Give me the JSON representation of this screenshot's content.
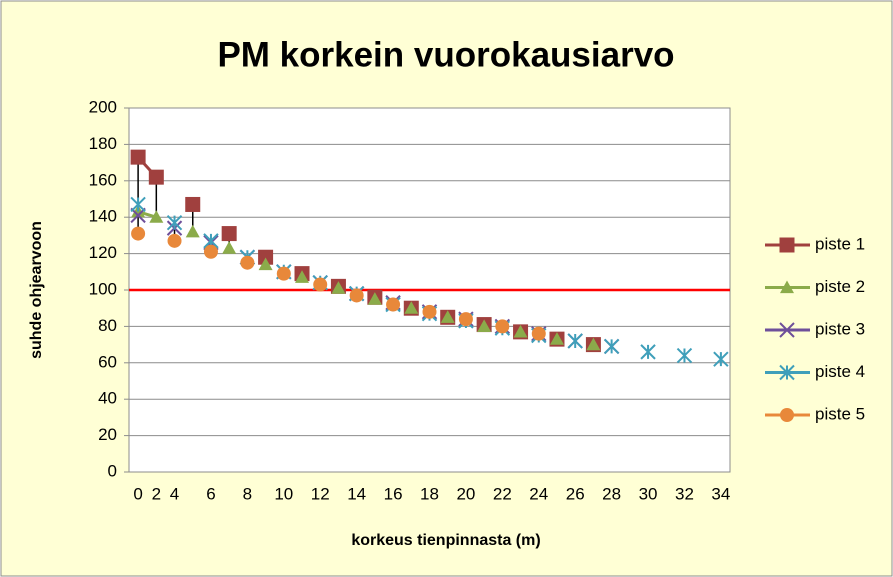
{
  "chart_data": {
    "type": "line",
    "title": "PM korkein vuorokausiarvo",
    "x_label": "korkeus tienpinnasta (m)",
    "y_label": "suhde ohjearvoon",
    "categories": [
      "0",
      "2",
      "4",
      null,
      "6",
      null,
      "8",
      null,
      "10",
      null,
      "12",
      null,
      "14",
      null,
      "16",
      null,
      "18",
      null,
      "20",
      null,
      "22",
      null,
      "24",
      null,
      "26",
      null,
      "28",
      null,
      "30",
      null,
      "32",
      null,
      "34"
    ],
    "ylim": [
      0,
      200
    ],
    "yticks": [
      0,
      20,
      40,
      60,
      80,
      100,
      120,
      140,
      160,
      180,
      200
    ],
    "grid": true,
    "legend": "right",
    "hilo_lines": true,
    "reference_line": {
      "value": 100,
      "color": "#ff0000"
    },
    "series": [
      {
        "name": "piste 1",
        "color": "#a0403e",
        "marker": "square",
        "values": [
          173,
          162,
          null,
          147,
          null,
          131,
          null,
          118,
          null,
          109,
          null,
          102,
          null,
          96,
          null,
          90,
          null,
          85,
          null,
          81,
          null,
          77,
          null,
          73,
          null,
          70,
          null,
          null,
          null,
          null,
          null,
          null,
          null
        ]
      },
      {
        "name": "piste 2",
        "color": "#8bab4a",
        "marker": "triangle",
        "values": [
          143,
          140,
          null,
          132,
          null,
          123,
          null,
          114,
          null,
          107,
          null,
          101,
          null,
          95,
          null,
          90,
          null,
          85,
          null,
          80,
          null,
          77,
          null,
          73,
          null,
          70,
          null,
          null,
          null,
          null,
          null,
          null,
          null
        ]
      },
      {
        "name": "piste 3",
        "color": "#6e4f9a",
        "marker": "x",
        "values": [
          141,
          null,
          134,
          null,
          126,
          null,
          118,
          null,
          110,
          null,
          104,
          null,
          98,
          null,
          93,
          null,
          88,
          null,
          84,
          null,
          80,
          null,
          76,
          null,
          72,
          null,
          69,
          null,
          null,
          null,
          null,
          null,
          null
        ]
      },
      {
        "name": "piste 4",
        "color": "#3f9fba",
        "marker": "star",
        "values": [
          147,
          null,
          137,
          null,
          127,
          null,
          118,
          null,
          110,
          null,
          104,
          null,
          98,
          null,
          92,
          null,
          87,
          null,
          83,
          null,
          79,
          null,
          75,
          null,
          72,
          null,
          69,
          null,
          66,
          null,
          64,
          null,
          62
        ]
      },
      {
        "name": "piste 5",
        "color": "#e8883a",
        "marker": "circle",
        "values": [
          131,
          null,
          127,
          null,
          121,
          null,
          115,
          null,
          109,
          null,
          103,
          null,
          97,
          null,
          92,
          null,
          88,
          null,
          84,
          null,
          80,
          null,
          76,
          null,
          null,
          null,
          null,
          null,
          null,
          null,
          null,
          null,
          null
        ]
      }
    ]
  }
}
